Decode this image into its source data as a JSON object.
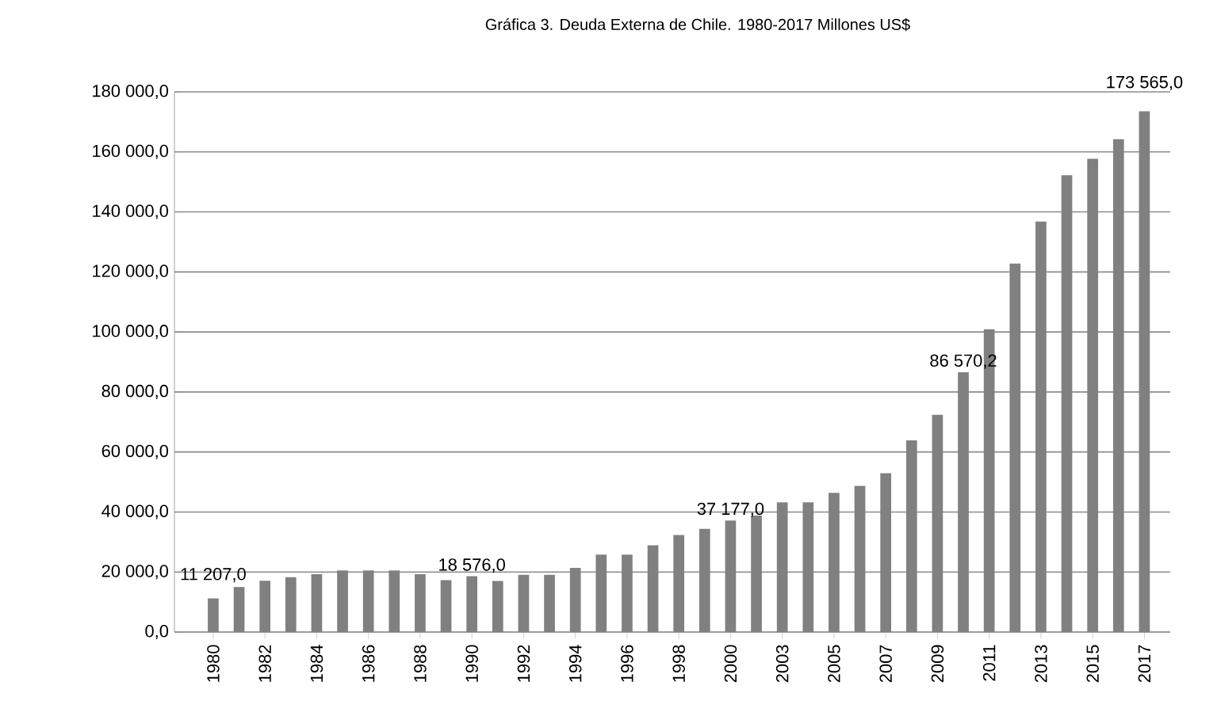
{
  "chart_data": {
    "type": "bar",
    "title": "Gráfica 3. Deuda Externa de Chile. 1980-2017 Millones US$",
    "categories": [
      "1980",
      null,
      "1982",
      null,
      "1984",
      null,
      "1986",
      null,
      "1988",
      null,
      "1990",
      null,
      "1992",
      null,
      "1994",
      null,
      "1996",
      null,
      "1998",
      null,
      "2000",
      null,
      "2003",
      null,
      "2005",
      null,
      "2007",
      null,
      "2009",
      null,
      "2011",
      null,
      "2013",
      null,
      "2015",
      null,
      "2017"
    ],
    "values": [
      11207.0,
      15000,
      17100,
      18300,
      19300,
      20500,
      20500,
      20500,
      19300,
      17300,
      18576.0,
      17000,
      19100,
      19100,
      21400,
      25800,
      25800,
      28900,
      32300,
      34400,
      37177.0,
      38800,
      43200,
      43200,
      46400,
      48700,
      52900,
      63900,
      72400,
      86570.2,
      100900,
      122800,
      136800,
      152200,
      157700,
      164200,
      173565.0
    ],
    "value_labels": [
      "11 207,0",
      null,
      null,
      null,
      null,
      null,
      null,
      null,
      null,
      null,
      "18 576,0",
      null,
      null,
      null,
      null,
      null,
      null,
      null,
      null,
      null,
      "37 177,0",
      null,
      null,
      null,
      null,
      null,
      null,
      null,
      null,
      "86 570,2",
      null,
      null,
      null,
      null,
      null,
      null,
      "173 565,0"
    ],
    "color": "#808080",
    "ylim": [
      0,
      180000
    ],
    "yticks": [
      {
        "value": 0,
        "label": "0,0"
      },
      {
        "value": 20000,
        "label": "20 000,0"
      },
      {
        "value": 40000,
        "label": "40 000,0"
      },
      {
        "value": 60000,
        "label": "60 000,0"
      },
      {
        "value": 80000,
        "label": "80 000,0"
      },
      {
        "value": 100000,
        "label": "100 000,0"
      },
      {
        "value": 120000,
        "label": "120 000,0"
      },
      {
        "value": 140000,
        "label": "140 000,0"
      },
      {
        "value": 160000,
        "label": "160 000,0"
      },
      {
        "value": 180000,
        "label": "180 000,0"
      }
    ],
    "grid": "y"
  }
}
